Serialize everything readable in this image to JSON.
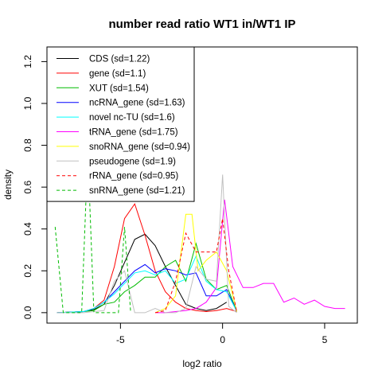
{
  "chart_data": {
    "type": "line",
    "title": "number read ratio WT1 in/WT1 IP",
    "xlabel": "log2 ratio",
    "ylabel": "density",
    "xlim": [
      -8.6,
      6.6
    ],
    "ylim": [
      -0.05,
      1.27
    ],
    "xticks": [
      -5,
      0,
      5
    ],
    "xtick_labels": [
      "-5",
      "0",
      "5"
    ],
    "yticks": [
      0.0,
      0.2,
      0.4,
      0.6,
      0.8,
      1.0,
      1.2
    ],
    "ytick_labels": [
      "0.0",
      "0.2",
      "0.4",
      "0.6",
      "0.8",
      "1.0",
      "1.2"
    ],
    "legend_position": "top-left",
    "series": [
      {
        "name": "CDS (sd=1.22)",
        "color": "#000000",
        "dash": false,
        "x": [
          -8.1,
          -6.8,
          -6.3,
          -5.8,
          -5.3,
          -4.8,
          -4.3,
          -3.8,
          -3.3,
          -2.8,
          -2.3,
          -1.8,
          -1.3,
          -0.8,
          -0.3,
          0.2
        ],
        "y": [
          0.0,
          0.005,
          0.015,
          0.04,
          0.13,
          0.24,
          0.35,
          0.375,
          0.32,
          0.22,
          0.13,
          0.04,
          0.02,
          0.01,
          0.02,
          0.05
        ]
      },
      {
        "name": "gene (sd=1.1)",
        "color": "#ff0000",
        "dash": false,
        "x": [
          -8.1,
          -6.8,
          -6.3,
          -5.8,
          -5.3,
          -4.8,
          -4.3,
          -3.8,
          -3.3,
          -2.8,
          -2.3,
          -1.8,
          -1.3,
          -0.8,
          -0.3,
          0.2,
          0.7
        ],
        "y": [
          0.0,
          0.005,
          0.02,
          0.06,
          0.22,
          0.45,
          0.52,
          0.37,
          0.2,
          0.1,
          0.05,
          0.02,
          0.01,
          0.005,
          0.01,
          0.02,
          0.005
        ]
      },
      {
        "name": "XUT (sd=1.54)",
        "color": "#00bb00",
        "dash": false,
        "x": [
          -8.1,
          -6.8,
          -6.3,
          -5.8,
          -5.3,
          -4.8,
          -4.3,
          -3.8,
          -3.3,
          -2.8,
          -2.3,
          -1.8,
          -1.3,
          -0.8,
          -0.3,
          0.2,
          0.7
        ],
        "y": [
          0.0,
          0.005,
          0.01,
          0.04,
          0.05,
          0.1,
          0.13,
          0.17,
          0.17,
          0.22,
          0.25,
          0.15,
          0.33,
          0.16,
          0.11,
          0.13,
          0.005
        ]
      },
      {
        "name": "ncRNA_gene (sd=1.63)",
        "color": "#0000ff",
        "dash": false,
        "x": [
          -8.1,
          -6.8,
          -6.3,
          -5.8,
          -5.3,
          -4.8,
          -4.3,
          -3.8,
          -3.3,
          -2.8,
          -2.3,
          -1.8,
          -1.3,
          -0.8,
          -0.3,
          0.2,
          0.7
        ],
        "y": [
          0.0,
          0.005,
          0.02,
          0.05,
          0.1,
          0.15,
          0.2,
          0.23,
          0.19,
          0.21,
          0.2,
          0.18,
          0.19,
          0.08,
          0.08,
          0.11,
          0.005
        ]
      },
      {
        "name": "novel nc-TU (sd=1.6)",
        "color": "#00ffff",
        "dash": false,
        "x": [
          -8.1,
          -6.8,
          -6.3,
          -5.8,
          -5.3,
          -4.8,
          -4.3,
          -3.8,
          -3.3,
          -2.8,
          -2.3,
          -1.8,
          -1.3,
          -0.8,
          -0.3,
          0.2,
          0.7
        ],
        "y": [
          0.0,
          0.005,
          0.02,
          0.05,
          0.09,
          0.14,
          0.19,
          0.2,
          0.18,
          0.2,
          0.14,
          0.16,
          0.27,
          0.15,
          0.11,
          0.1,
          0.005
        ]
      },
      {
        "name": "tRNA_gene (sd=1.75)",
        "color": "#ff00ff",
        "dash": false,
        "x": [
          -3.3,
          -2.8,
          -2.3,
          -1.8,
          -1.3,
          -0.8,
          -0.3,
          0.1,
          0.5,
          1.0,
          1.5,
          2.0,
          2.5,
          3.0,
          3.5,
          4.0,
          4.5,
          5.0,
          5.5,
          6.0
        ],
        "y": [
          0.0,
          0.0,
          0.005,
          0.01,
          0.02,
          0.05,
          0.12,
          0.54,
          0.22,
          0.12,
          0.12,
          0.14,
          0.14,
          0.05,
          0.07,
          0.04,
          0.06,
          0.03,
          0.02,
          0.02
        ]
      },
      {
        "name": "snoRNA_gene (sd=0.94)",
        "color": "#ffff00",
        "dash": false,
        "x": [
          -3.3,
          -2.8,
          -2.3,
          -1.8,
          -1.5,
          -1.2,
          -0.8,
          -0.3,
          0.2,
          0.7
        ],
        "y": [
          0.0,
          0.02,
          0.08,
          0.47,
          0.47,
          0.2,
          0.25,
          0.29,
          0.2,
          0.005
        ]
      },
      {
        "name": "pseudogene (sd=1.9)",
        "color": "#c0c0c0",
        "dash": false,
        "x": [
          -8.1,
          -6.8,
          -6.3,
          -5.8,
          -5.3,
          -4.8,
          -4.3,
          -3.8,
          -3.3,
          -2.8,
          -2.3,
          -1.8,
          -1.3,
          -0.8,
          -0.3,
          0.0,
          0.3,
          0.7
        ],
        "y": [
          0.0,
          0.0,
          0.005,
          0.01,
          0.15,
          0.2,
          0.0,
          0.0,
          0.02,
          0.0,
          0.0,
          0.02,
          0.22,
          0.16,
          0.15,
          0.66,
          0.03,
          0.0
        ]
      },
      {
        "name": "rRNA_gene (sd=0.95)",
        "color": "#ff0000",
        "dash": true,
        "x": [
          -3.3,
          -2.8,
          -2.3,
          -1.8,
          -1.3,
          -0.8,
          -0.3,
          0.0,
          0.3,
          0.7
        ],
        "y": [
          0.0,
          0.01,
          0.15,
          0.38,
          0.29,
          0.29,
          0.29,
          0.45,
          0.2,
          0.0
        ]
      },
      {
        "name": "snRNA_gene (sd=1.21)",
        "color": "#00bb00",
        "dash": true,
        "x": [
          -8.2,
          -7.8,
          -7.4,
          -6.9,
          -6.6,
          -6.3,
          -5.9,
          -5.5,
          -5.1,
          -4.8,
          -4.5
        ],
        "y": [
          0.41,
          0.0,
          0.0,
          0.0,
          0.77,
          0.0,
          0.0,
          0.0,
          0.0,
          0.41,
          0.0
        ]
      }
    ]
  }
}
